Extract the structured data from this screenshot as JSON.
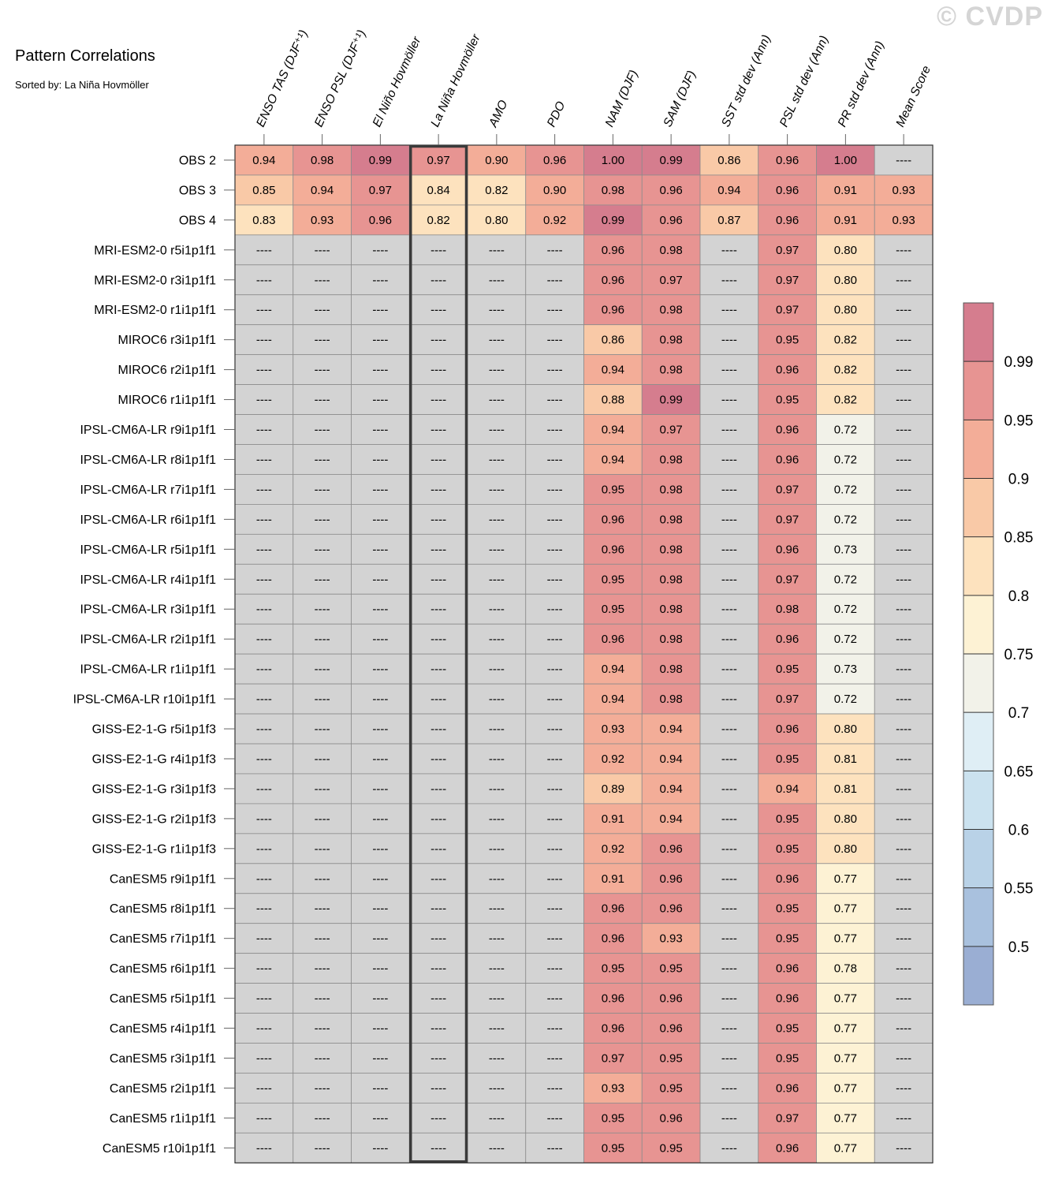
{
  "title": "Pattern Correlations",
  "subtitle": "Sorted by: La Niña Hovmöller",
  "watermark": "© CVDP",
  "missing_symbol": "----",
  "chart_data": {
    "type": "heatmap",
    "title": "Pattern Correlations",
    "subtitle": "Sorted by: La Niña Hovmöller",
    "columns": [
      "ENSO TAS (DJF⁺¹)",
      "ENSO PSL (DJF⁺¹)",
      "El Niño Hovmöller",
      "La Niña Hovmöller",
      "AMO",
      "PDO",
      "NAM (DJF)",
      "SAM (DJF)",
      "SST std dev (Ann)",
      "PSL std dev (Ann)",
      "PR std dev (Ann)",
      "Mean Score"
    ],
    "highlighted_column": "La Niña Hovmöller",
    "rows": [
      {
        "name": "OBS 2",
        "values": [
          0.94,
          0.98,
          0.99,
          0.97,
          0.9,
          0.96,
          1.0,
          0.99,
          0.86,
          0.96,
          1.0,
          null
        ]
      },
      {
        "name": "OBS 3",
        "values": [
          0.85,
          0.94,
          0.97,
          0.84,
          0.82,
          0.9,
          0.98,
          0.96,
          0.94,
          0.96,
          0.91,
          0.93
        ]
      },
      {
        "name": "OBS 4",
        "values": [
          0.83,
          0.93,
          0.96,
          0.82,
          0.8,
          0.92,
          0.99,
          0.96,
          0.87,
          0.96,
          0.91,
          0.93
        ]
      },
      {
        "name": "MRI-ESM2-0 r5i1p1f1",
        "values": [
          null,
          null,
          null,
          null,
          null,
          null,
          0.96,
          0.98,
          null,
          0.97,
          0.8,
          null
        ]
      },
      {
        "name": "MRI-ESM2-0 r3i1p1f1",
        "values": [
          null,
          null,
          null,
          null,
          null,
          null,
          0.96,
          0.97,
          null,
          0.97,
          0.8,
          null
        ]
      },
      {
        "name": "MRI-ESM2-0 r1i1p1f1",
        "values": [
          null,
          null,
          null,
          null,
          null,
          null,
          0.96,
          0.98,
          null,
          0.97,
          0.8,
          null
        ]
      },
      {
        "name": "MIROC6 r3i1p1f1",
        "values": [
          null,
          null,
          null,
          null,
          null,
          null,
          0.86,
          0.98,
          null,
          0.95,
          0.82,
          null
        ]
      },
      {
        "name": "MIROC6 r2i1p1f1",
        "values": [
          null,
          null,
          null,
          null,
          null,
          null,
          0.94,
          0.98,
          null,
          0.96,
          0.82,
          null
        ]
      },
      {
        "name": "MIROC6 r1i1p1f1",
        "values": [
          null,
          null,
          null,
          null,
          null,
          null,
          0.88,
          0.99,
          null,
          0.95,
          0.82,
          null
        ]
      },
      {
        "name": "IPSL-CM6A-LR r9i1p1f1",
        "values": [
          null,
          null,
          null,
          null,
          null,
          null,
          0.94,
          0.97,
          null,
          0.96,
          0.72,
          null
        ]
      },
      {
        "name": "IPSL-CM6A-LR r8i1p1f1",
        "values": [
          null,
          null,
          null,
          null,
          null,
          null,
          0.94,
          0.98,
          null,
          0.96,
          0.72,
          null
        ]
      },
      {
        "name": "IPSL-CM6A-LR r7i1p1f1",
        "values": [
          null,
          null,
          null,
          null,
          null,
          null,
          0.95,
          0.98,
          null,
          0.97,
          0.72,
          null
        ]
      },
      {
        "name": "IPSL-CM6A-LR r6i1p1f1",
        "values": [
          null,
          null,
          null,
          null,
          null,
          null,
          0.96,
          0.98,
          null,
          0.97,
          0.72,
          null
        ]
      },
      {
        "name": "IPSL-CM6A-LR r5i1p1f1",
        "values": [
          null,
          null,
          null,
          null,
          null,
          null,
          0.96,
          0.98,
          null,
          0.96,
          0.73,
          null
        ]
      },
      {
        "name": "IPSL-CM6A-LR r4i1p1f1",
        "values": [
          null,
          null,
          null,
          null,
          null,
          null,
          0.95,
          0.98,
          null,
          0.97,
          0.72,
          null
        ]
      },
      {
        "name": "IPSL-CM6A-LR r3i1p1f1",
        "values": [
          null,
          null,
          null,
          null,
          null,
          null,
          0.95,
          0.98,
          null,
          0.98,
          0.72,
          null
        ]
      },
      {
        "name": "IPSL-CM6A-LR r2i1p1f1",
        "values": [
          null,
          null,
          null,
          null,
          null,
          null,
          0.96,
          0.98,
          null,
          0.96,
          0.72,
          null
        ]
      },
      {
        "name": "IPSL-CM6A-LR r1i1p1f1",
        "values": [
          null,
          null,
          null,
          null,
          null,
          null,
          0.94,
          0.98,
          null,
          0.95,
          0.73,
          null
        ]
      },
      {
        "name": "IPSL-CM6A-LR r10i1p1f1",
        "values": [
          null,
          null,
          null,
          null,
          null,
          null,
          0.94,
          0.98,
          null,
          0.97,
          0.72,
          null
        ]
      },
      {
        "name": "GISS-E2-1-G r5i1p1f3",
        "values": [
          null,
          null,
          null,
          null,
          null,
          null,
          0.93,
          0.94,
          null,
          0.96,
          0.8,
          null
        ]
      },
      {
        "name": "GISS-E2-1-G r4i1p1f3",
        "values": [
          null,
          null,
          null,
          null,
          null,
          null,
          0.92,
          0.94,
          null,
          0.95,
          0.81,
          null
        ]
      },
      {
        "name": "GISS-E2-1-G r3i1p1f3",
        "values": [
          null,
          null,
          null,
          null,
          null,
          null,
          0.89,
          0.94,
          null,
          0.94,
          0.81,
          null
        ]
      },
      {
        "name": "GISS-E2-1-G r2i1p1f3",
        "values": [
          null,
          null,
          null,
          null,
          null,
          null,
          0.91,
          0.94,
          null,
          0.95,
          0.8,
          null
        ]
      },
      {
        "name": "GISS-E2-1-G r1i1p1f3",
        "values": [
          null,
          null,
          null,
          null,
          null,
          null,
          0.92,
          0.96,
          null,
          0.95,
          0.8,
          null
        ]
      },
      {
        "name": "CanESM5 r9i1p1f1",
        "values": [
          null,
          null,
          null,
          null,
          null,
          null,
          0.91,
          0.96,
          null,
          0.96,
          0.77,
          null
        ]
      },
      {
        "name": "CanESM5 r8i1p1f1",
        "values": [
          null,
          null,
          null,
          null,
          null,
          null,
          0.96,
          0.96,
          null,
          0.95,
          0.77,
          null
        ]
      },
      {
        "name": "CanESM5 r7i1p1f1",
        "values": [
          null,
          null,
          null,
          null,
          null,
          null,
          0.96,
          0.93,
          null,
          0.95,
          0.77,
          null
        ]
      },
      {
        "name": "CanESM5 r6i1p1f1",
        "values": [
          null,
          null,
          null,
          null,
          null,
          null,
          0.95,
          0.95,
          null,
          0.96,
          0.78,
          null
        ]
      },
      {
        "name": "CanESM5 r5i1p1f1",
        "values": [
          null,
          null,
          null,
          null,
          null,
          null,
          0.96,
          0.96,
          null,
          0.96,
          0.77,
          null
        ]
      },
      {
        "name": "CanESM5 r4i1p1f1",
        "values": [
          null,
          null,
          null,
          null,
          null,
          null,
          0.96,
          0.96,
          null,
          0.95,
          0.77,
          null
        ]
      },
      {
        "name": "CanESM5 r3i1p1f1",
        "values": [
          null,
          null,
          null,
          null,
          null,
          null,
          0.97,
          0.95,
          null,
          0.95,
          0.77,
          null
        ]
      },
      {
        "name": "CanESM5 r2i1p1f1",
        "values": [
          null,
          null,
          null,
          null,
          null,
          null,
          0.93,
          0.95,
          null,
          0.96,
          0.77,
          null
        ]
      },
      {
        "name": "CanESM5 r1i1p1f1",
        "values": [
          null,
          null,
          null,
          null,
          null,
          null,
          0.95,
          0.96,
          null,
          0.97,
          0.77,
          null
        ]
      },
      {
        "name": "CanESM5 r10i1p1f1",
        "values": [
          null,
          null,
          null,
          null,
          null,
          null,
          0.95,
          0.95,
          null,
          0.96,
          0.77,
          null
        ]
      }
    ],
    "colorbar": {
      "levels": [
        0.5,
        0.55,
        0.6,
        0.65,
        0.7,
        0.75,
        0.8,
        0.85,
        0.9,
        0.95,
        0.99
      ],
      "labels": [
        "0.5",
        "0.55",
        "0.6",
        "0.65",
        "0.7",
        "0.75",
        "0.8",
        "0.85",
        "0.9",
        "0.95",
        "0.99"
      ],
      "colors": [
        "#9aaed3",
        "#a9c1de",
        "#b9d2e7",
        "#cbe2ef",
        "#dfeef5",
        "#f2f2e9",
        "#fdf2d4",
        "#fde2be",
        "#f9c9a7",
        "#f3ad98",
        "#e79492",
        "#d57d8e"
      ],
      "missing_color": "#d3d3d3"
    }
  }
}
